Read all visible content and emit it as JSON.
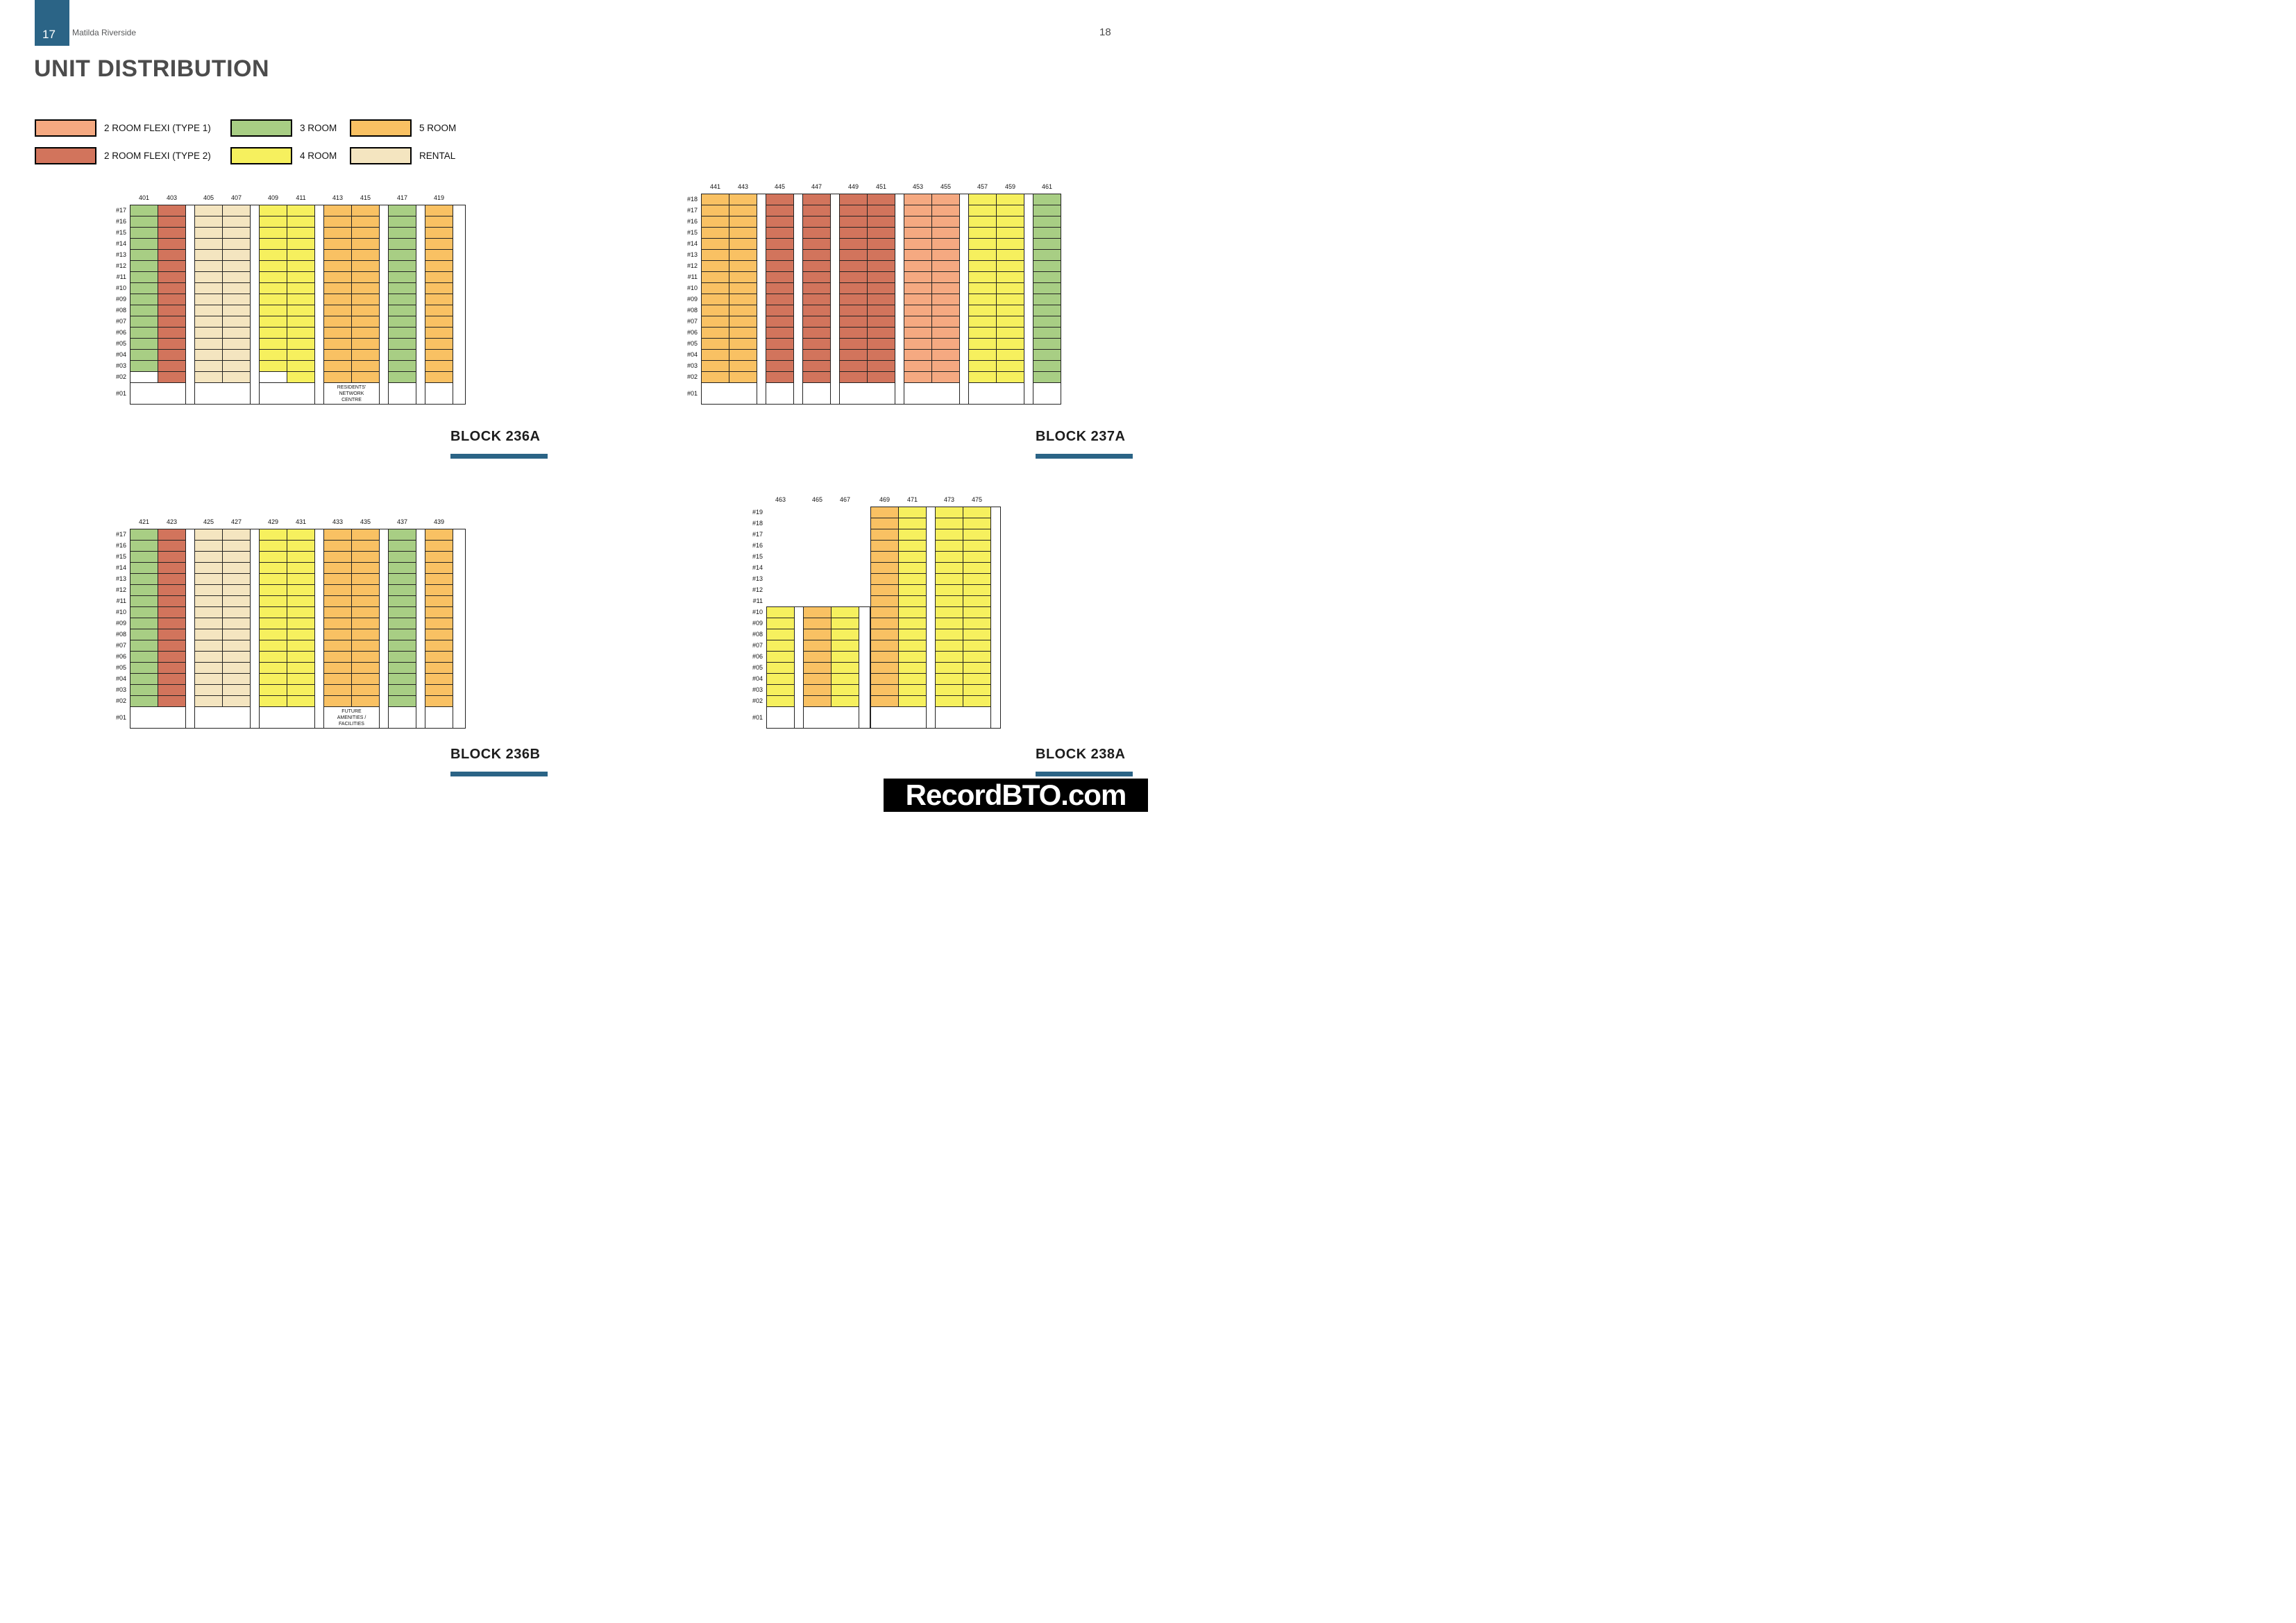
{
  "page": {
    "badge_number": "17",
    "brand": "Matilda Riverside",
    "page_number": "18",
    "title": "UNIT DISTRIBUTION"
  },
  "accent_color": "#2B6486",
  "line_color": "#222222",
  "legend": {
    "rows": [
      [
        {
          "key": "2RF1",
          "label": "2 ROOM FLEXI (TYPE 1)",
          "color": "#F5A981"
        },
        {
          "key": "3R",
          "label": "3 ROOM",
          "color": "#A8CE84"
        },
        {
          "key": "5R",
          "label": "5 ROOM",
          "color": "#F9C163"
        }
      ],
      [
        {
          "key": "2RF2",
          "label": "2 ROOM FLEXI (TYPE 2)",
          "color": "#D2745C"
        },
        {
          "key": "4R",
          "label": "4 ROOM",
          "color": "#F6F05E"
        },
        {
          "key": "RENTAL",
          "label": "RENTAL",
          "color": "#F4E5C0"
        }
      ]
    ]
  },
  "blocks": [
    {
      "id": "236A",
      "title": "BLOCK 236A",
      "floors": [
        "#17",
        "#16",
        "#15",
        "#14",
        "#13",
        "#12",
        "#11",
        "#10",
        "#09",
        "#08",
        "#07",
        "#06",
        "#05",
        "#04",
        "#03",
        "#02",
        "#01"
      ],
      "groups": [
        {
          "stacks": [
            {
              "num": "401",
              "room": "3R",
              "bottom": "#03"
            },
            {
              "num": "403",
              "room": "2RF2"
            }
          ]
        },
        {
          "stacks": [
            {
              "num": "405",
              "room": "RENTAL"
            },
            {
              "num": "407",
              "room": "RENTAL"
            }
          ]
        },
        {
          "stacks": [
            {
              "num": "409",
              "room": "4R",
              "bottom": "#03"
            },
            {
              "num": "411",
              "room": "4R"
            }
          ]
        },
        {
          "stacks": [
            {
              "num": "413",
              "room": "5R"
            },
            {
              "num": "415",
              "room": "5R"
            }
          ],
          "ground_label": [
            "RESIDENTS'",
            "NETWORK",
            "CENTRE"
          ]
        },
        {
          "stacks": [
            {
              "num": "417",
              "room": "3R"
            }
          ]
        },
        {
          "stacks": [
            {
              "num": "419",
              "room": "5R"
            }
          ]
        }
      ]
    },
    {
      "id": "237A",
      "title": "BLOCK 237A",
      "floors": [
        "#18",
        "#17",
        "#16",
        "#15",
        "#14",
        "#13",
        "#12",
        "#11",
        "#10",
        "#09",
        "#08",
        "#07",
        "#06",
        "#05",
        "#04",
        "#03",
        "#02",
        "#01"
      ],
      "groups": [
        {
          "stacks": [
            {
              "num": "441",
              "room": "5R"
            },
            {
              "num": "443",
              "room": "5R"
            }
          ]
        },
        {
          "stacks": [
            {
              "num": "445",
              "room": "2RF2"
            }
          ]
        },
        {
          "stacks": [
            {
              "num": "447",
              "room": "2RF2"
            }
          ]
        },
        {
          "stacks": [
            {
              "num": "449",
              "room": "2RF2"
            },
            {
              "num": "451",
              "room": "2RF2"
            }
          ]
        },
        {
          "stacks": [
            {
              "num": "453",
              "room": "2RF1"
            },
            {
              "num": "455",
              "room": "2RF1"
            }
          ]
        },
        {
          "stacks": [
            {
              "num": "457",
              "room": "4R"
            },
            {
              "num": "459",
              "room": "4R"
            }
          ]
        },
        {
          "stacks": [
            {
              "num": "461",
              "room": "3R"
            }
          ]
        }
      ]
    },
    {
      "id": "236B",
      "title": "BLOCK 236B",
      "floors": [
        "#17",
        "#16",
        "#15",
        "#14",
        "#13",
        "#12",
        "#11",
        "#10",
        "#09",
        "#08",
        "#07",
        "#06",
        "#05",
        "#04",
        "#03",
        "#02",
        "#01"
      ],
      "groups": [
        {
          "stacks": [
            {
              "num": "421",
              "room": "3R"
            },
            {
              "num": "423",
              "room": "2RF2"
            }
          ]
        },
        {
          "stacks": [
            {
              "num": "425",
              "room": "RENTAL"
            },
            {
              "num": "427",
              "room": "RENTAL"
            }
          ]
        },
        {
          "stacks": [
            {
              "num": "429",
              "room": "4R"
            },
            {
              "num": "431",
              "room": "4R"
            }
          ]
        },
        {
          "stacks": [
            {
              "num": "433",
              "room": "5R"
            },
            {
              "num": "435",
              "room": "5R"
            }
          ],
          "ground_label": [
            "FUTURE",
            "AMENITIES /",
            "FACILITIES"
          ]
        },
        {
          "stacks": [
            {
              "num": "437",
              "room": "3R"
            }
          ]
        },
        {
          "stacks": [
            {
              "num": "439",
              "room": "5R"
            }
          ]
        }
      ]
    },
    {
      "id": "238A",
      "title": "BLOCK 238A",
      "floors": [
        "#19",
        "#18",
        "#17",
        "#16",
        "#15",
        "#14",
        "#13",
        "#12",
        "#11",
        "#10",
        "#09",
        "#08",
        "#07",
        "#06",
        "#05",
        "#04",
        "#03",
        "#02",
        "#01"
      ],
      "groups": [
        {
          "start_floor": "#10",
          "stacks": [
            {
              "num": "463",
              "room": "4R"
            }
          ]
        },
        {
          "start_floor": "#10",
          "stacks": [
            {
              "num": "465",
              "room": "5R"
            },
            {
              "num": "467",
              "room": "4R"
            }
          ]
        },
        {
          "stacks": [
            {
              "num": "469",
              "room": "5R"
            },
            {
              "num": "471",
              "room": "4R"
            }
          ]
        },
        {
          "stacks": [
            {
              "num": "473",
              "room": "4R"
            },
            {
              "num": "475",
              "room": "4R"
            }
          ]
        }
      ]
    }
  ],
  "watermark": {
    "text": "RecordBTO.com",
    "bg": "#000000",
    "fg": "#FFFFFF"
  }
}
